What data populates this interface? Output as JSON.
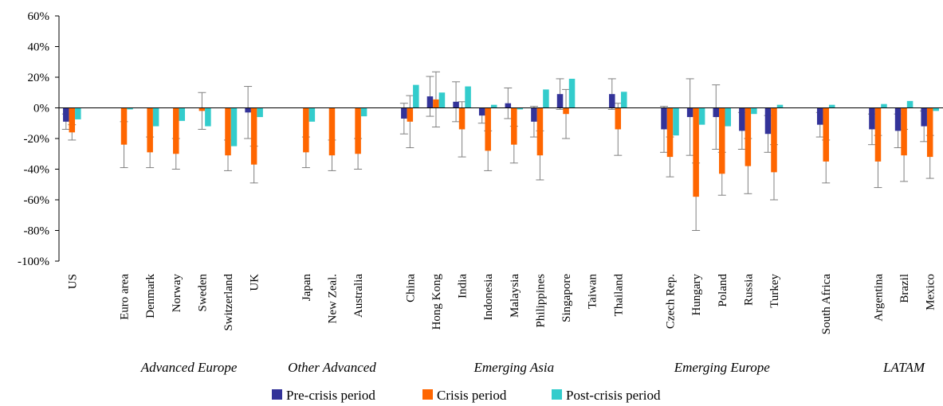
{
  "chart_data": {
    "type": "bar",
    "title": "",
    "xlabel": "",
    "ylabel": "",
    "ylim": [
      -1.0,
      0.6
    ],
    "yticks": [
      0.6,
      0.4,
      0.2,
      0,
      -0.2,
      -0.4,
      -0.6,
      -0.8,
      -1.0
    ],
    "ytick_labels": [
      "60%",
      "40%",
      "20%",
      "0%",
      "-20%",
      "-40%",
      "-60%",
      "-80%",
      "-100%"
    ],
    "grid": false,
    "legend_position": "bottom",
    "categories": [
      "US",
      "",
      "Euro area",
      "Denmark",
      "Norway",
      "Sweden",
      "Switzerland",
      "UK",
      "",
      "Japan",
      "New Zeal.",
      "Australia",
      "",
      "China",
      "Hong Kong",
      "India",
      "Indonesia",
      "Malaysia",
      "Philippines",
      "Singapore",
      "Taiwan",
      "Thailand",
      "",
      "Czech Rep.",
      "Hungary",
      "Poland",
      "Russia",
      "Turkey",
      "",
      "South Africa",
      "",
      "Argentina",
      "Brazil",
      "Mexico"
    ],
    "groups": [
      {
        "label": "Advanced Europe",
        "from": 2,
        "to": 7
      },
      {
        "label": "Other Advanced",
        "from": 9,
        "to": 11
      },
      {
        "label": "Emerging Asia",
        "from": 13,
        "to": 21
      },
      {
        "label": "Emerging Europe",
        "from": 23,
        "to": 27
      },
      {
        "label": "LATAM",
        "from": 31,
        "to": 33
      }
    ],
    "series": [
      {
        "name": "Pre-crisis period",
        "color": "#333399",
        "values": [
          -0.09,
          null,
          null,
          null,
          null,
          null,
          null,
          -0.03,
          null,
          null,
          null,
          null,
          null,
          -0.07,
          0.075,
          0.04,
          -0.05,
          0.03,
          -0.09,
          0.09,
          null,
          0.09,
          null,
          -0.14,
          -0.06,
          -0.06,
          -0.15,
          -0.17,
          null,
          -0.11,
          null,
          -0.14,
          -0.15,
          -0.12
        ],
        "errors": [
          0.05,
          null,
          null,
          null,
          null,
          null,
          null,
          0.17,
          null,
          null,
          null,
          null,
          null,
          0.1,
          0.13,
          0.13,
          0.05,
          0.1,
          0.1,
          0.1,
          null,
          0.1,
          null,
          0.15,
          0.25,
          0.21,
          0.12,
          0.12,
          null,
          0.08,
          null,
          0.1,
          0.11,
          0.1
        ]
      },
      {
        "name": "Crisis period",
        "color": "#ff6600",
        "values": [
          -0.16,
          null,
          -0.24,
          -0.29,
          -0.3,
          -0.02,
          -0.31,
          -0.37,
          null,
          -0.29,
          -0.31,
          -0.3,
          null,
          -0.09,
          0.055,
          -0.14,
          -0.28,
          -0.24,
          -0.31,
          -0.04,
          null,
          -0.14,
          null,
          -0.32,
          -0.58,
          -0.43,
          -0.38,
          -0.42,
          null,
          -0.35,
          null,
          -0.35,
          -0.31,
          -0.32
        ],
        "errors": [
          0.05,
          null,
          0.15,
          0.1,
          0.1,
          0.12,
          0.1,
          0.12,
          null,
          0.1,
          0.1,
          0.1,
          null,
          0.17,
          0.18,
          0.18,
          0.13,
          0.12,
          0.16,
          0.16,
          null,
          0.17,
          null,
          0.13,
          0.22,
          0.14,
          0.18,
          0.18,
          null,
          0.14,
          null,
          0.17,
          0.17,
          0.14
        ]
      },
      {
        "name": "Post-crisis period",
        "color": "#33cccc",
        "values": [
          -0.075,
          null,
          -0.01,
          -0.12,
          -0.085,
          -0.12,
          -0.25,
          -0.06,
          null,
          -0.09,
          null,
          -0.055,
          null,
          0.15,
          0.1,
          0.14,
          0.02,
          -0.01,
          0.12,
          0.19,
          null,
          0.105,
          null,
          -0.18,
          -0.11,
          -0.12,
          -0.04,
          0.02,
          null,
          0.02,
          null,
          0.025,
          0.045,
          -0.02
        ]
      }
    ]
  }
}
